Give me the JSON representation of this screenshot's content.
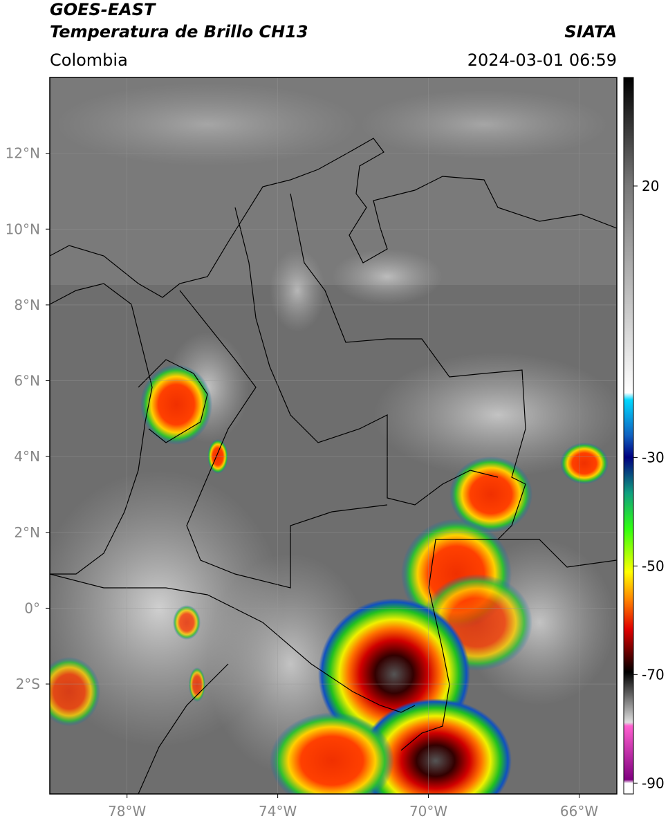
{
  "chart_data": {
    "type": "map",
    "title": "GOES-EAST",
    "subtitle": "Temperatura de Brillo CH13",
    "region": "Colombia",
    "source": "SIATA",
    "datetime": "2024-03-01 06:59",
    "xlim": [
      -80.05,
      -65
    ],
    "ylim": [
      -4.9,
      14
    ],
    "xticks": [
      {
        "value": -78,
        "label": "78°W"
      },
      {
        "value": -74,
        "label": "74°W"
      },
      {
        "value": -70,
        "label": "70°W"
      },
      {
        "value": -66,
        "label": "66°W"
      }
    ],
    "yticks": [
      {
        "value": -2,
        "label": "2°S"
      },
      {
        "value": 0,
        "label": "0°"
      },
      {
        "value": 2,
        "label": "2°N"
      },
      {
        "value": 4,
        "label": "4°N"
      },
      {
        "value": 6,
        "label": "6°N"
      },
      {
        "value": 8,
        "label": "8°N"
      },
      {
        "value": 10,
        "label": "10°N"
      },
      {
        "value": 12,
        "label": "12°N"
      }
    ],
    "colorbar_lim": [
      -92,
      40
    ],
    "colorbar_ticks": [
      20,
      -30,
      -50,
      -70,
      -90
    ],
    "grid": true
  }
}
